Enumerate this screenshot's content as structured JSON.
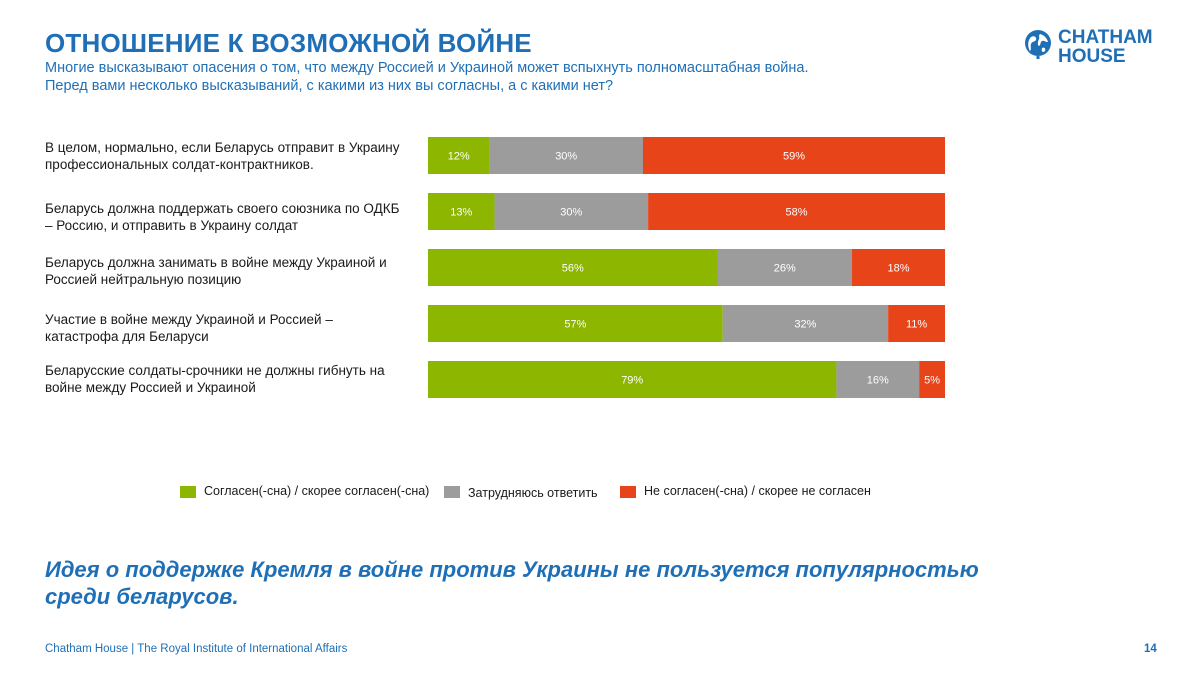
{
  "title": "ОТНОШЕНИЕ К ВОЗМОЖНОЙ ВОЙНЕ",
  "subtitle_line1": "Многие высказывают опасения о том, что между Россией и Украиной может вспыхнуть полномасштабная война.",
  "subtitle_line2": "Перед вами несколько высказываний, с какими из них вы согласны, а с какими нет?",
  "logo": {
    "line1": "CHATHAM",
    "line2": "HOUSE",
    "icon": "globe-icon"
  },
  "chart_data": {
    "type": "bar",
    "orientation": "horizontal-stacked-100",
    "categories": [
      "В целом, нормально, если Беларусь отправит в Украину профессиональных солдат-контрактников.",
      "Беларусь должна поддержать своего союзника по ОДКБ –  Россию, и отправить в Украину солдат",
      "Беларусь должна занимать в войне между Украиной и Россией нейтральную позицию",
      "Участие в войне между Украиной и Россией – катастрофа для Беларуси",
      "Беларусские солдаты-срочники не должны гибнуть на войне между Россией и Украиной"
    ],
    "category_lines": [
      [
        "В целом, нормально, если Беларусь отправит в Украину",
        "профессиональных солдат-контрактников."
      ],
      [
        "Беларусь должна поддержать своего союзника по ОДКБ",
        "–  Россию, и отправить в Украину солдат"
      ],
      [
        "Беларусь должна занимать в войне между Украиной и",
        "Россией нейтральную позицию"
      ],
      [
        "Участие в войне между Украиной и Россией –",
        "катастрофа для Беларуси"
      ],
      [
        "Беларусские солдаты-срочники не должны гибнуть на",
        "войне между Россией и Украиной"
      ]
    ],
    "series": [
      {
        "name": "Согласен(-сна) / скорее согласен(-сна)",
        "color": "#8db600",
        "values": [
          12,
          13,
          56,
          57,
          79
        ]
      },
      {
        "name": "Затрудняюсь ответить",
        "color": "#9c9c9c",
        "values": [
          30,
          30,
          26,
          32,
          16
        ]
      },
      {
        "name": "Не согласен(-сна) / скорее не согласен",
        "color": "#e8441a",
        "values": [
          59,
          58,
          18,
          11,
          5
        ]
      }
    ],
    "value_suffix": "%",
    "legend_position": "bottom",
    "grid": false
  },
  "conclusion_line1": "Идея о поддержке Кремля в войне против Украины не пользуется популярностью",
  "conclusion_line2": "среди беларусов.",
  "footer": "Chatham House  |  The Royal Institute of International Affairs",
  "page_number": "14"
}
